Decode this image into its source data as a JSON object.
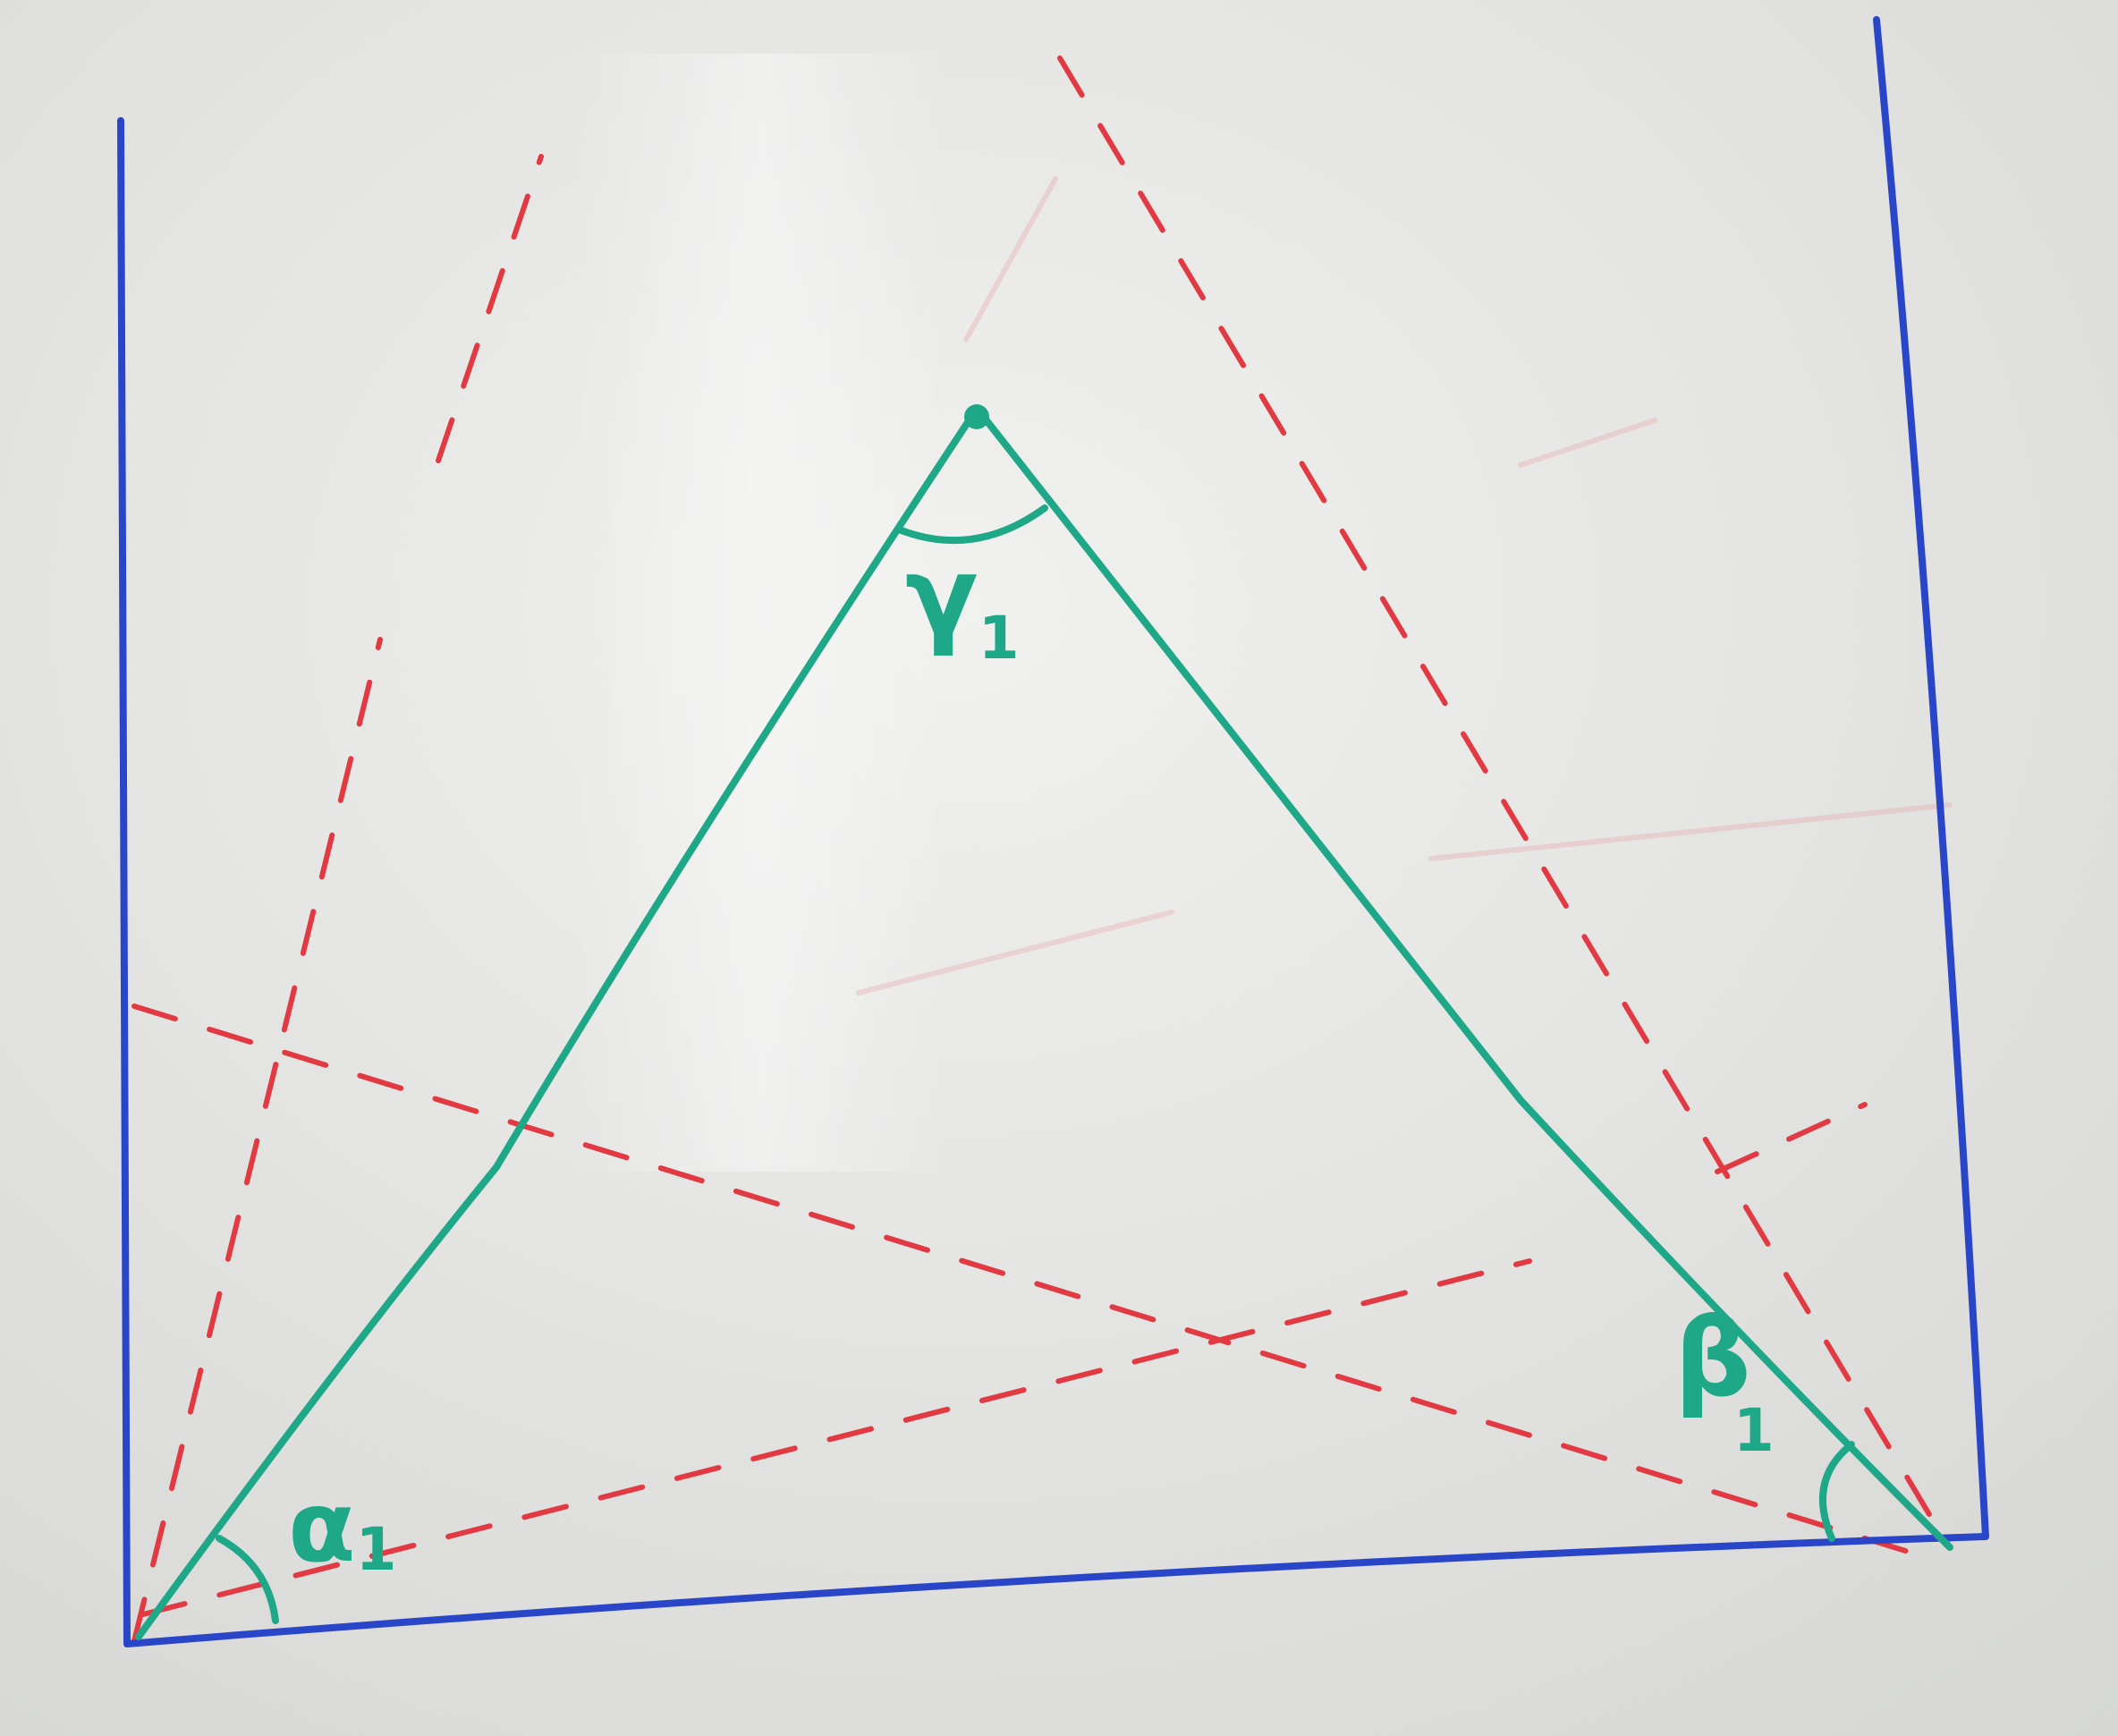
{
  "labels": {
    "gamma": "γ",
    "gamma_sub": "1",
    "alpha": "α",
    "alpha_sub": "1",
    "beta": "β",
    "beta_sub": "1"
  },
  "colors": {
    "board": "#e7e8e6",
    "frame": "#2a46c8",
    "triangle": "#1fa888",
    "dashed": "#e23a42"
  }
}
